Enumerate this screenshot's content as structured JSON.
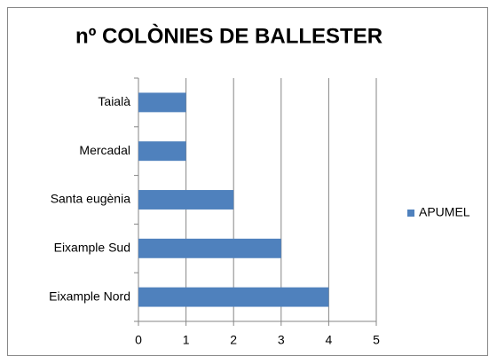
{
  "chart_data": {
    "type": "bar",
    "orientation": "horizontal",
    "title": "nº COLÒNIES DE BALLESTER",
    "categories": [
      "Eixample Nord",
      "Eixample Sud",
      "Santa eugènia",
      "Mercadal",
      "Taialà"
    ],
    "series": [
      {
        "name": "APUMEL",
        "color": "#4f81bd",
        "values": [
          4,
          3,
          2,
          1,
          1
        ]
      }
    ],
    "xlim": [
      0,
      5
    ],
    "xticks": [
      0,
      1,
      2,
      3,
      4,
      5
    ],
    "grid": true,
    "legend": "right"
  }
}
